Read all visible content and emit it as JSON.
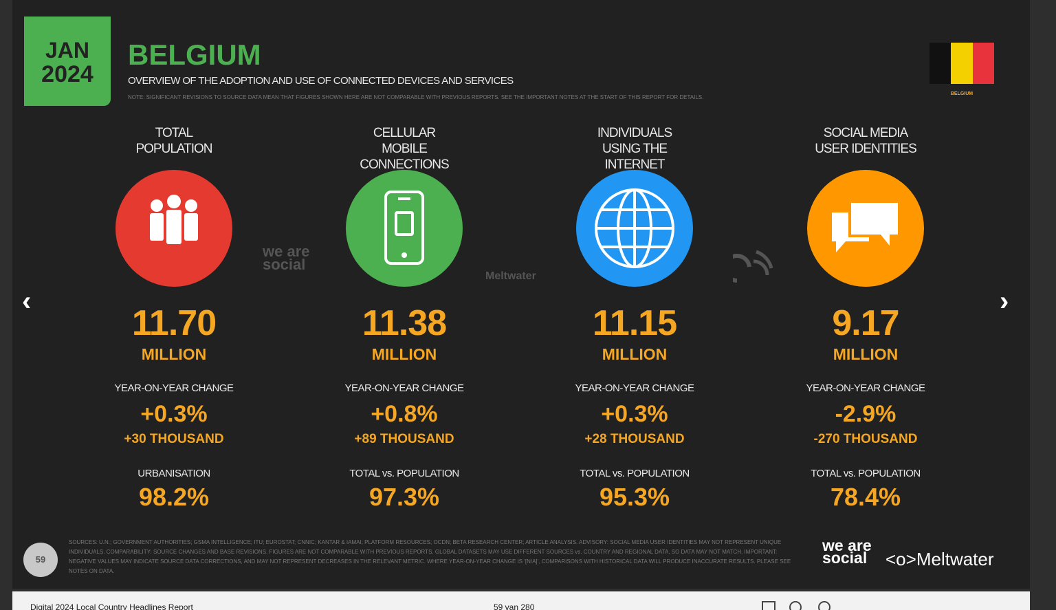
{
  "header": {
    "month": "JAN",
    "year": "2024",
    "title": "BELGIUM",
    "subtitle": "OVERVIEW OF THE ADOPTION AND USE OF CONNECTED DEVICES AND SERVICES",
    "note": "NOTE: SIGNIFICANT REVISIONS TO SOURCE DATA MEAN THAT FIGURES SHOWN HERE ARE NOT COMPARABLE WITH PREVIOUS REPORTS. SEE THE IMPORTANT NOTES AT THE START OF THIS REPORT FOR DETAILS.",
    "flag_label": "BELGIUM"
  },
  "stats": [
    {
      "label": "TOTAL POPULATION",
      "value": "11.70",
      "unit": "MILLION",
      "change_label": "YEAR-ON-YEAR CHANGE",
      "change": "+0.3%",
      "change_abs": "+30 THOUSAND",
      "sub_label": "URBANISATION",
      "sub_value": "98.2%"
    },
    {
      "label": "CELLULAR MOBILE CONNECTIONS",
      "value": "11.38",
      "unit": "MILLION",
      "change_label": "YEAR-ON-YEAR CHANGE",
      "change": "+0.8%",
      "change_abs": "+89 THOUSAND",
      "sub_label": "TOTAL vs. POPULATION",
      "sub_value": "97.3%"
    },
    {
      "label": "INDIVIDUALS USING THE INTERNET",
      "value": "11.15",
      "unit": "MILLION",
      "change_label": "YEAR-ON-YEAR CHANGE",
      "change": "+0.3%",
      "change_abs": "+28 THOUSAND",
      "sub_label": "TOTAL vs. POPULATION",
      "sub_value": "95.3%"
    },
    {
      "label": "SOCIAL MEDIA USER IDENTITIES",
      "value": "9.17",
      "unit": "MILLION",
      "change_label": "YEAR-ON-YEAR CHANGE",
      "change": "-2.9%",
      "change_abs": "-270 THOUSAND",
      "sub_label": "TOTAL vs. POPULATION",
      "sub_value": "78.4%"
    }
  ],
  "watermarks": [
    "we are social",
    "Meltwater"
  ],
  "footer": {
    "page": "59",
    "sources": "SOURCES: U.N.; GOVERNMENT AUTHORITIES; GSMA INTELLIGENCE; ITU; EUROSTAT; CNNIC; KANTAR & IAMAI; PLATFORM RESOURCES; OCDN; BETA RESEARCH CENTER; ARTICLE ANALYSIS. ADVISORY: SOCIAL MEDIA USER IDENTITIES MAY NOT REPRESENT UNIQUE INDIVIDUALS. COMPARABILITY: SOURCE CHANGES AND BASE REVISIONS. FIGURES ARE NOT COMPARABLE WITH PREVIOUS REPORTS. GLOBAL DATASETS MAY USE DIFFERENT SOURCES vs. COUNTRY AND REGIONAL DATA, SO DATA MAY NOT MATCH. IMPORTANT: NEGATIVE VALUES MAY INDICATE SOURCE DATA CORRECTIONS, AND MAY NOT REPRESENT DECREASES IN THE RELEVANT METRIC. WHERE YEAR-ON-YEAR CHANGE IS '[N/A]', COMPARISONS WITH HISTORICAL DATA WILL PRODUCE INACCURATE RESULTS. PLEASE SEE NOTES ON DATA.",
    "brand1": "we are social",
    "brand2": "Meltwater"
  },
  "viewer": {
    "document": "Digital 2024 Local Country Headlines Report",
    "page_info": "59 van 280"
  }
}
